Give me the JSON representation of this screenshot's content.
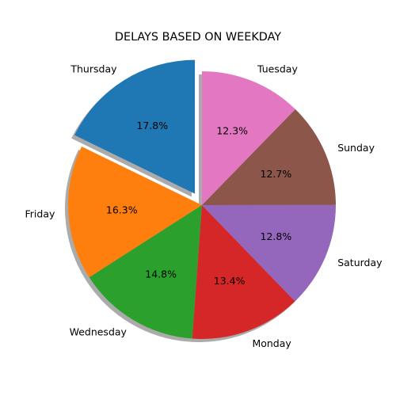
{
  "chart_data": {
    "type": "pie",
    "title": "DELAYS BASED ON WEEKDAY",
    "shadow": true,
    "start_angle_deg": 90,
    "direction": "counterclockwise",
    "slices": [
      {
        "label": "Thursday",
        "percent": 17.8,
        "percent_label": "17.8%",
        "color": "#1f77b4",
        "exploded": true
      },
      {
        "label": "Friday",
        "percent": 16.3,
        "percent_label": "16.3%",
        "color": "#ff7f0e",
        "exploded": false
      },
      {
        "label": "Wednesday",
        "percent": 14.8,
        "percent_label": "14.8%",
        "color": "#2ca02c",
        "exploded": false
      },
      {
        "label": "Monday",
        "percent": 13.4,
        "percent_label": "13.4%",
        "color": "#d62728",
        "exploded": false
      },
      {
        "label": "Saturday",
        "percent": 12.8,
        "percent_label": "12.8%",
        "color": "#9467bd",
        "exploded": false
      },
      {
        "label": "Sunday",
        "percent": 12.7,
        "percent_label": "12.7%",
        "color": "#8c564b",
        "exploded": false
      },
      {
        "label": "Tuesday",
        "percent": 12.3,
        "percent_label": "12.3%",
        "color": "#e377c2",
        "exploded": false
      }
    ]
  }
}
